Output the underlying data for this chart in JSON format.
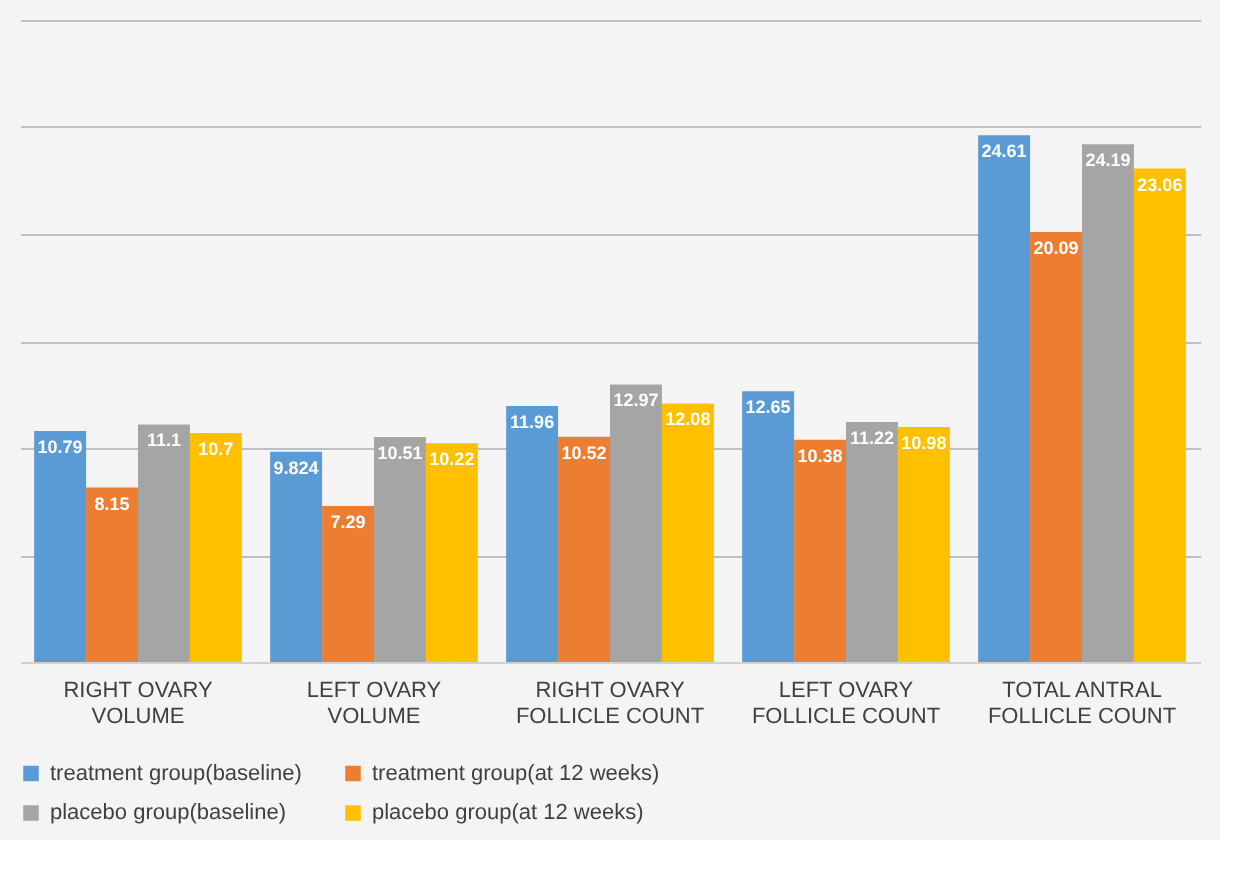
{
  "chart_data": {
    "type": "bar",
    "categories": [
      "RIGHT OVARY VOLUME",
      "LEFT OVARY VOLUME",
      "RIGHT OVARY FOLLICLE COUNT",
      "LEFT OVARY FOLLICLE COUNT",
      "TOTAL ANTRAL FOLLICLE COUNT"
    ],
    "series": [
      {
        "name": "treatment group(baseline)",
        "color": "#5b9bd5",
        "values": [
          10.79,
          9.824,
          11.96,
          12.65,
          24.61
        ]
      },
      {
        "name": "treatment group(at 12 weeks)",
        "color": "#ed7d31",
        "values": [
          8.15,
          7.29,
          10.52,
          10.38,
          20.09
        ]
      },
      {
        "name": "placebo group(baseline)",
        "color": "#a5a5a5",
        "values": [
          11.1,
          10.51,
          12.97,
          11.22,
          24.19
        ]
      },
      {
        "name": "placebo group(at 12 weeks)",
        "color": "#ffc000",
        "values": [
          10.7,
          10.22,
          12.08,
          10.98,
          23.06
        ]
      }
    ],
    "ylim": [
      0,
      30
    ],
    "yticks": [
      {
        "value": 0,
        "label": null
      },
      {
        "value": 5,
        "label": null
      },
      {
        "value": 10,
        "label": null
      },
      {
        "value": 15,
        "label": null
      },
      {
        "value": 20,
        "label": null
      },
      {
        "value": 25,
        "label": null
      },
      {
        "value": 30,
        "label": null
      }
    ],
    "tick_labels": "x",
    "grid": "y",
    "legend": "bottom",
    "data_labels": true
  }
}
